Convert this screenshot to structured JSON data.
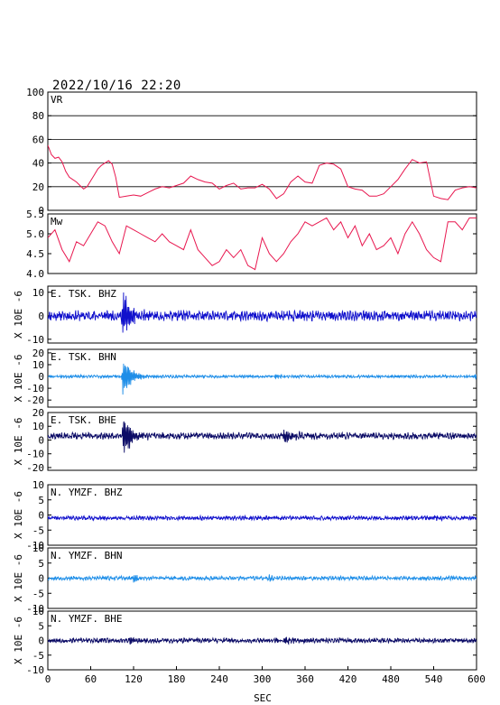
{
  "figure": {
    "title": "2022/10/16  22:20",
    "xlabel": "SEC"
  },
  "chart_data": {
    "type": "line",
    "title": "2022/10/16  22:20",
    "xlabel": "SEC",
    "xlim": [
      0,
      600
    ],
    "xticks": [
      0,
      60,
      120,
      180,
      240,
      300,
      360,
      420,
      480,
      540,
      600
    ],
    "grid": false,
    "panels": [
      {
        "id": "vr",
        "label": "VR",
        "ylabel": "",
        "ylim": [
          0,
          100
        ],
        "yticks": [
          0,
          20,
          40,
          60,
          80,
          100
        ],
        "hgrid": [
          20,
          40,
          60,
          80
        ],
        "color": "#e8174f",
        "x": [
          0,
          5,
          10,
          15,
          20,
          25,
          30,
          35,
          40,
          45,
          50,
          55,
          60,
          65,
          70,
          75,
          80,
          85,
          90,
          95,
          100,
          110,
          120,
          130,
          140,
          150,
          160,
          170,
          180,
          190,
          200,
          210,
          220,
          230,
          240,
          250,
          260,
          270,
          280,
          290,
          300,
          310,
          320,
          330,
          340,
          350,
          360,
          370,
          380,
          390,
          400,
          410,
          420,
          430,
          440,
          450,
          460,
          470,
          480,
          490,
          500,
          510,
          520,
          530,
          540,
          550,
          560,
          570,
          580,
          590,
          600
        ],
        "y": [
          55,
          47,
          44,
          45,
          41,
          33,
          28,
          26,
          24,
          21,
          18,
          20,
          25,
          30,
          35,
          38,
          40,
          42,
          39,
          28,
          11,
          12,
          13,
          12,
          15,
          18,
          20,
          19,
          21,
          23,
          29,
          26,
          24,
          23,
          18,
          21,
          23,
          18,
          19,
          19,
          22,
          18,
          10,
          14,
          24,
          29,
          24,
          23,
          38,
          40,
          39,
          35,
          20,
          18,
          17,
          12,
          12,
          14,
          20,
          26,
          35,
          43,
          40,
          41,
          12,
          10,
          9,
          17,
          19,
          20,
          19
        ]
      },
      {
        "id": "mw",
        "label": "Mw",
        "ylabel": "",
        "ylim": [
          4.0,
          5.5
        ],
        "yticks": [
          4.0,
          4.5,
          5.0,
          5.5
        ],
        "color": "#e8174f",
        "x": [
          0,
          10,
          20,
          30,
          40,
          50,
          60,
          70,
          80,
          90,
          100,
          110,
          120,
          130,
          140,
          150,
          160,
          170,
          180,
          190,
          200,
          210,
          220,
          230,
          240,
          250,
          260,
          270,
          280,
          290,
          300,
          310,
          320,
          330,
          340,
          350,
          360,
          370,
          380,
          390,
          400,
          410,
          420,
          430,
          440,
          450,
          460,
          470,
          480,
          490,
          500,
          510,
          520,
          530,
          540,
          550,
          560,
          570,
          580,
          590,
          600
        ],
        "y": [
          4.9,
          5.1,
          4.6,
          4.3,
          4.8,
          4.7,
          5.0,
          5.3,
          5.2,
          4.8,
          4.5,
          5.2,
          5.1,
          5.0,
          4.9,
          4.8,
          5.0,
          4.8,
          4.7,
          4.6,
          5.1,
          4.6,
          4.4,
          4.2,
          4.3,
          4.6,
          4.4,
          4.6,
          4.2,
          4.1,
          4.9,
          4.5,
          4.3,
          4.5,
          4.8,
          5.0,
          5.3,
          5.2,
          5.3,
          5.4,
          5.1,
          5.3,
          4.9,
          5.2,
          4.7,
          5.0,
          4.6,
          4.7,
          4.9,
          4.5,
          5.0,
          5.3,
          5.0,
          4.6,
          4.4,
          4.3,
          5.3,
          5.3,
          5.1,
          5.4,
          5.4
        ]
      },
      {
        "id": "e-tsk-bhz",
        "label": "E. TSK. BHZ",
        "ylabel": "X 10E -6",
        "ylim": [
          -11.6,
          12.6
        ],
        "yticks": [
          -10,
          0,
          10
        ],
        "color": "#1010cc",
        "noise": 1.6,
        "baseline": 0,
        "bursts": [
          {
            "at": 105,
            "amp": 11,
            "width": 10
          }
        ],
        "seed": 11
      },
      {
        "id": "e-tsk-bhn",
        "label": "E. TSK. BHN",
        "ylabel": "X 10E -6",
        "ylim": [
          -26,
          23
        ],
        "yticks": [
          -20,
          -10,
          0,
          10,
          20
        ],
        "color": "#1e8ee8",
        "noise": 0.9,
        "baseline": 0,
        "bursts": [
          {
            "at": 105,
            "amp": 18,
            "width": 12
          },
          {
            "at": 318,
            "amp": 2.5,
            "width": 8
          },
          {
            "at": 598,
            "amp": 3,
            "width": 3
          }
        ],
        "seed": 23
      },
      {
        "id": "e-tsk-bhe",
        "label": "E. TSK. BHE",
        "ylabel": "X 10E -6",
        "ylim": [
          -22,
          20
        ],
        "yticks": [
          -20,
          -10,
          0,
          10,
          20
        ],
        "color": "#0b0b66",
        "noise": 1.8,
        "baseline": 3,
        "bursts": [
          {
            "at": 106,
            "amp": 17,
            "width": 11
          },
          {
            "at": 330,
            "amp": 5,
            "width": 20
          }
        ],
        "seed": 37
      },
      {
        "id": "n-ymzf-bhz",
        "label": "N. YMZF. BHZ",
        "ylabel": "X 10E -6",
        "ylim": [
          -10,
          10
        ],
        "yticks": [
          -10,
          -5,
          0,
          5,
          10
        ],
        "color": "#1010cc",
        "noise": 0.5,
        "baseline": -1,
        "bursts": [
          {
            "at": 540,
            "amp": 0.8,
            "width": 10
          }
        ],
        "seed": 41
      },
      {
        "id": "n-ymzf-bhn",
        "label": "N. YMZF. BHN",
        "ylabel": "X 10E -6",
        "ylim": [
          -10,
          10
        ],
        "yticks": [
          -10,
          -5,
          0,
          5,
          10
        ],
        "color": "#1e8ee8",
        "noise": 0.5,
        "baseline": 0,
        "bursts": [
          {
            "at": 120,
            "amp": 2,
            "width": 4
          },
          {
            "at": 310,
            "amp": 1,
            "width": 8
          }
        ],
        "seed": 53
      },
      {
        "id": "n-ymzf-bhe",
        "label": "N. YMZF. BHE",
        "ylabel": "X 10E -6",
        "ylim": [
          -10,
          10
        ],
        "yticks": [
          -10,
          -5,
          0,
          5,
          10
        ],
        "color": "#0b0b66",
        "noise": 0.6,
        "baseline": 0,
        "bursts": [
          {
            "at": 115,
            "amp": 1.5,
            "width": 6
          },
          {
            "at": 330,
            "amp": 1.2,
            "width": 15
          }
        ],
        "seed": 67
      }
    ]
  }
}
